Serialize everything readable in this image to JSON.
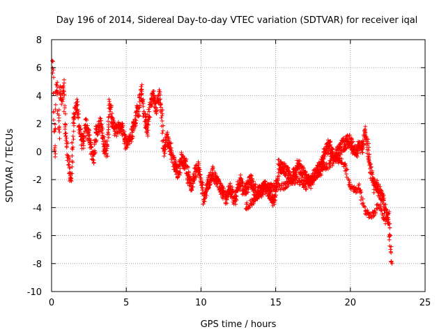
{
  "chart_data": {
    "type": "scatter",
    "title": "Day 196 of 2014, Sidereal Day-to-day VTEC variation (SDTVAR) for receiver iqal",
    "xlabel": "GPS time / hours",
    "ylabel": "SDTVAR / TECUs",
    "xlim": [
      0,
      25
    ],
    "ylim": [
      -10,
      8
    ],
    "xticks": [
      "0",
      "5",
      "10",
      "15",
      "20",
      "25"
    ],
    "yticks": [
      "8",
      "6",
      "4",
      "2",
      "0",
      "-2",
      "-4",
      "-6",
      "-8",
      "-10"
    ],
    "grid": true,
    "marker": "+",
    "color": "#ff0000",
    "series": [
      {
        "name": "SDTVAR",
        "trend": [
          [
            0.0,
            4.5
          ],
          [
            0.05,
            6.2
          ],
          [
            0.1,
            5.5
          ],
          [
            0.15,
            3.0
          ],
          [
            0.2,
            0.5
          ],
          [
            0.25,
            -0.5
          ],
          [
            0.3,
            3.0
          ],
          [
            0.35,
            5.0
          ],
          [
            0.4,
            4.0
          ],
          [
            0.45,
            2.0
          ],
          [
            0.5,
            1.0
          ],
          [
            0.55,
            4.0
          ],
          [
            0.6,
            4.5
          ],
          [
            0.7,
            3.5
          ],
          [
            0.8,
            5.0
          ],
          [
            0.9,
            2.0
          ],
          [
            1.0,
            1.0
          ],
          [
            1.1,
            -0.5
          ],
          [
            1.2,
            -1.5
          ],
          [
            1.3,
            -2.0
          ],
          [
            1.4,
            0.5
          ],
          [
            1.5,
            2.5
          ],
          [
            1.7,
            3.5
          ],
          [
            1.9,
            1.5
          ],
          [
            2.1,
            0.5
          ],
          [
            2.3,
            2.0
          ],
          [
            2.5,
            1.0
          ],
          [
            2.8,
            -0.5
          ],
          [
            3.0,
            1.5
          ],
          [
            3.3,
            2.0
          ],
          [
            3.5,
            0.5
          ],
          [
            3.7,
            0.0
          ],
          [
            3.9,
            3.5
          ],
          [
            4.1,
            2.0
          ],
          [
            4.3,
            1.5
          ],
          [
            4.5,
            1.8
          ],
          [
            4.8,
            1.5
          ],
          [
            5.0,
            0.5
          ],
          [
            5.3,
            1.0
          ],
          [
            5.5,
            2.0
          ],
          [
            5.8,
            3.0
          ],
          [
            6.0,
            4.5
          ],
          [
            6.2,
            2.5
          ],
          [
            6.4,
            1.5
          ],
          [
            6.6,
            3.5
          ],
          [
            6.8,
            4.0
          ],
          [
            7.0,
            3.0
          ],
          [
            7.2,
            4.0
          ],
          [
            7.4,
            2.5
          ],
          [
            7.5,
            0.0
          ],
          [
            7.7,
            1.0
          ],
          [
            7.9,
            0.5
          ],
          [
            8.1,
            -0.5
          ],
          [
            8.3,
            -1.0
          ],
          [
            8.5,
            -1.5
          ],
          [
            8.7,
            -0.5
          ],
          [
            9.0,
            -1.0
          ],
          [
            9.2,
            -2.0
          ],
          [
            9.4,
            -2.5
          ],
          [
            9.6,
            -1.5
          ],
          [
            9.8,
            -1.0
          ],
          [
            10.0,
            -2.0
          ],
          [
            10.2,
            -3.5
          ],
          [
            10.4,
            -2.5
          ],
          [
            10.6,
            -2.0
          ],
          [
            10.8,
            -1.5
          ],
          [
            11.0,
            -2.0
          ],
          [
            11.3,
            -2.5
          ],
          [
            11.5,
            -3.0
          ],
          [
            11.7,
            -3.5
          ],
          [
            11.9,
            -2.5
          ],
          [
            12.1,
            -3.0
          ],
          [
            12.3,
            -3.5
          ],
          [
            12.5,
            -2.5
          ],
          [
            12.7,
            -2.0
          ],
          [
            12.9,
            -3.0
          ],
          [
            13.1,
            -2.5
          ],
          [
            13.3,
            -2.0
          ],
          [
            13.5,
            -2.5
          ],
          [
            13.7,
            -3.0
          ],
          [
            14.0,
            -2.8
          ],
          [
            14.3,
            -2.5
          ],
          [
            14.6,
            -3.0
          ],
          [
            14.8,
            -3.5
          ],
          [
            15.0,
            -3.0
          ],
          [
            15.2,
            -1.0
          ],
          [
            15.5,
            -1.2
          ],
          [
            15.8,
            -1.5
          ],
          [
            16.0,
            -2.0
          ],
          [
            16.3,
            -1.5
          ],
          [
            16.5,
            -1.0
          ],
          [
            16.8,
            -1.5
          ],
          [
            17.1,
            -2.0
          ],
          [
            17.4,
            -2.2
          ],
          [
            17.7,
            -1.5
          ],
          [
            18.0,
            -1.0
          ],
          [
            18.3,
            0.0
          ],
          [
            18.6,
            0.5
          ],
          [
            18.9,
            -0.5
          ],
          [
            19.2,
            0.0
          ],
          [
            19.5,
            0.5
          ],
          [
            19.8,
            0.7
          ],
          [
            20.0,
            0.8
          ],
          [
            20.2,
            0.2
          ],
          [
            20.4,
            -0.2
          ],
          [
            20.6,
            0.5
          ],
          [
            20.8,
            0.0
          ],
          [
            21.0,
            1.5
          ],
          [
            21.2,
            0.0
          ],
          [
            21.4,
            -1.5
          ],
          [
            21.6,
            -2.5
          ],
          [
            21.8,
            -2.5
          ],
          [
            22.0,
            -3.0
          ],
          [
            22.2,
            -3.5
          ],
          [
            22.4,
            -4.5
          ],
          [
            22.6,
            -5.5
          ],
          [
            22.7,
            -7.0
          ],
          [
            22.75,
            -8.5
          ]
        ],
        "secondary_trend": [
          [
            13.0,
            -4.0
          ],
          [
            13.5,
            -3.5
          ],
          [
            14.0,
            -3.0
          ],
          [
            14.5,
            -2.5
          ],
          [
            15.0,
            -2.5
          ],
          [
            15.5,
            -2.5
          ],
          [
            16.0,
            -2.2
          ],
          [
            16.5,
            -2.0
          ],
          [
            17.0,
            -2.5
          ],
          [
            17.5,
            -1.8
          ],
          [
            18.0,
            -1.5
          ],
          [
            18.5,
            -1.0
          ],
          [
            19.0,
            -0.5
          ],
          [
            19.5,
            -0.8
          ],
          [
            19.8,
            -1.5
          ],
          [
            20.0,
            -2.5
          ],
          [
            20.3,
            -2.8
          ],
          [
            20.6,
            -2.5
          ],
          [
            20.8,
            -3.5
          ],
          [
            21.0,
            -4.3
          ],
          [
            21.2,
            -4.5
          ],
          [
            21.5,
            -4.5
          ],
          [
            21.8,
            -4.0
          ],
          [
            22.0,
            -4.0
          ],
          [
            22.3,
            -5.0
          ],
          [
            22.6,
            -4.3
          ]
        ]
      }
    ]
  }
}
